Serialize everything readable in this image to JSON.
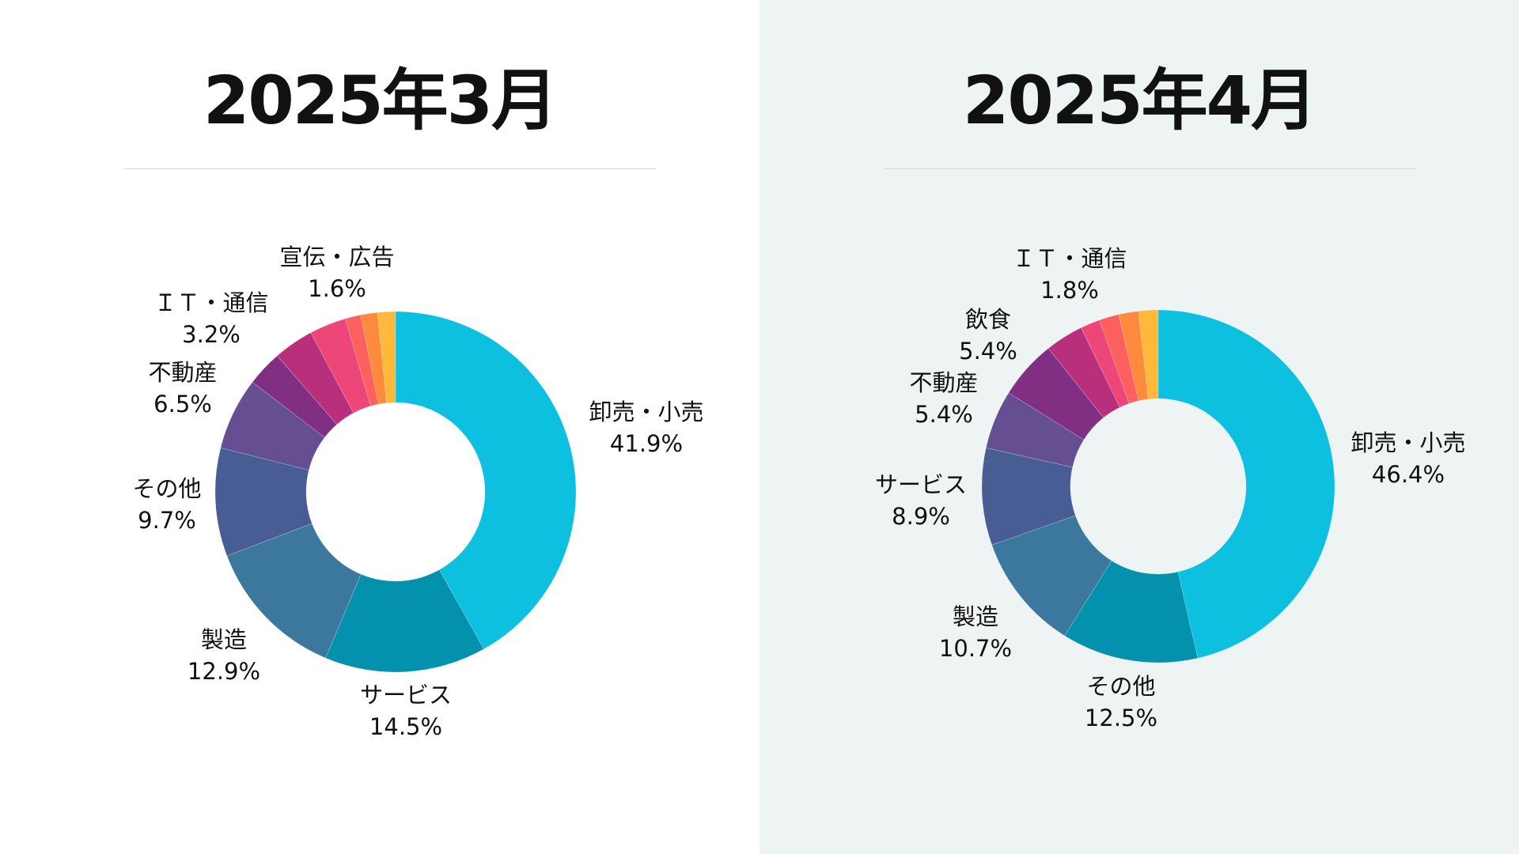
{
  "chart_data": [
    {
      "type": "pie",
      "title": "2025年3月",
      "colors": [
        "#0dc0df",
        "#0391ae",
        "#3c779e",
        "#485d94",
        "#664e93",
        "#812f83",
        "#b8307c",
        "#ed4679",
        "#fe5f5f",
        "#fe8a3e",
        "#feb83a"
      ],
      "slices": [
        {
          "name": "卸売・小売",
          "value": 41.9,
          "label": "41.9%"
        },
        {
          "name": "サービス",
          "value": 14.5,
          "label": "14.5%"
        },
        {
          "name": "製造",
          "value": 12.9,
          "label": "12.9%"
        },
        {
          "name": "その他",
          "value": 9.7,
          "label": "9.7%"
        },
        {
          "name": "不動産",
          "value": 6.5,
          "label": "6.5%"
        },
        {
          "name": "ＩＴ・通信",
          "value": 3.2,
          "label": "3.2%"
        },
        {
          "name": "",
          "value": 3.6,
          "label": ""
        },
        {
          "name": "",
          "value": 3.3,
          "label": ""
        },
        {
          "name": "",
          "value": 1.4,
          "label": ""
        },
        {
          "name": "",
          "value": 1.5,
          "label": ""
        },
        {
          "name": "宣伝・広告",
          "value": 1.6,
          "label": "1.6%"
        }
      ]
    },
    {
      "type": "pie",
      "title": "2025年4月",
      "colors": [
        "#0dc0df",
        "#0391ae",
        "#3c779e",
        "#485d94",
        "#664e93",
        "#812f83",
        "#b8307c",
        "#ed4679",
        "#fe5f5f",
        "#fe8a3e",
        "#feb83a"
      ],
      "slices": [
        {
          "name": "卸売・小売",
          "value": 46.4,
          "label": "46.4%"
        },
        {
          "name": "その他",
          "value": 12.5,
          "label": "12.5%"
        },
        {
          "name": "製造",
          "value": 10.7,
          "label": "10.7%"
        },
        {
          "name": "サービス",
          "value": 8.9,
          "label": "8.9%"
        },
        {
          "name": "不動産",
          "value": 5.4,
          "label": "5.4%"
        },
        {
          "name": "飲食",
          "value": 5.4,
          "label": "5.4%"
        },
        {
          "name": "",
          "value": 3.5,
          "label": ""
        },
        {
          "name": "ＩＴ・通信",
          "value": 1.8,
          "label": "1.8%"
        },
        {
          "name": "",
          "value": 1.8,
          "label": ""
        },
        {
          "name": "",
          "value": 1.8,
          "label": ""
        },
        {
          "name": "",
          "value": 1.8,
          "label": ""
        }
      ]
    }
  ]
}
